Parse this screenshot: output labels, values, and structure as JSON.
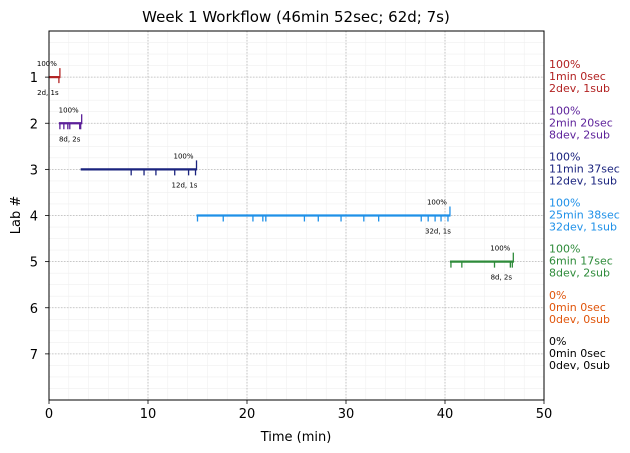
{
  "chart_data": {
    "type": "timeline",
    "title": "Week 1 Workflow (46min 52sec; 62d; 7s)",
    "xlabel": "Time (min)",
    "ylabel": "Lab #",
    "xlim": [
      0,
      50
    ],
    "ylim": [
      8,
      0
    ],
    "xticks": [
      0,
      10,
      20,
      30,
      40,
      50
    ],
    "yticks": [
      1,
      2,
      3,
      4,
      5,
      6,
      7
    ],
    "grid": true,
    "labs": [
      {
        "lab": 1,
        "color": "#b22222",
        "start": 0.0,
        "end": 1.1,
        "events": [
          1.0
        ],
        "pct_label": "100%",
        "counts_label": "2d, 1s",
        "side": [
          "100%",
          "1min 0sec",
          "2dev, 1sub"
        ]
      },
      {
        "lab": 2,
        "color": "#5b1f99",
        "start": 1.0,
        "end": 3.3,
        "events": [
          1.1,
          1.5,
          1.9,
          2.1,
          3.1,
          3.2
        ],
        "pct_label": "100%",
        "counts_label": "8d, 2s",
        "side": [
          "100%",
          "2min 20sec",
          "8dev, 2sub"
        ]
      },
      {
        "lab": 3,
        "color": "#1a237e",
        "start": 3.2,
        "end": 14.9,
        "events": [
          8.3,
          9.6,
          10.8,
          12.7,
          14.1,
          14.8
        ],
        "pct_label": "100%",
        "counts_label": "12d, 1s",
        "side": [
          "100%",
          "11min 37sec",
          "12dev, 1sub"
        ]
      },
      {
        "lab": 4,
        "color": "#1e90e8",
        "start": 14.9,
        "end": 40.5,
        "events": [
          15.0,
          17.6,
          20.6,
          21.6,
          21.9,
          25.8,
          27.2,
          29.5,
          31.8,
          33.3,
          37.6,
          38.3,
          39.0,
          39.6,
          40.3
        ],
        "pct_label": "100%",
        "counts_label": "32d, 1s",
        "side": [
          "100%",
          "25min 38sec",
          "32dev, 1sub"
        ]
      },
      {
        "lab": 5,
        "color": "#2e8b3a",
        "start": 40.5,
        "end": 46.9,
        "events": [
          40.6,
          41.7,
          45.0,
          46.6,
          46.8
        ],
        "pct_label": "100%",
        "counts_label": "8d, 2s",
        "side": [
          "100%",
          "6min 17sec",
          "8dev, 2sub"
        ]
      },
      {
        "lab": 6,
        "color": "#e0550b",
        "start": null,
        "end": null,
        "events": [],
        "pct_label": "",
        "counts_label": "",
        "side": [
          "0%",
          "0min 0sec",
          "0dev, 0sub"
        ]
      },
      {
        "lab": 7,
        "color": "#000000",
        "start": null,
        "end": null,
        "events": [],
        "pct_label": "",
        "counts_label": "",
        "side": [
          "0%",
          "0min 0sec",
          "0dev, 0sub"
        ]
      }
    ]
  }
}
